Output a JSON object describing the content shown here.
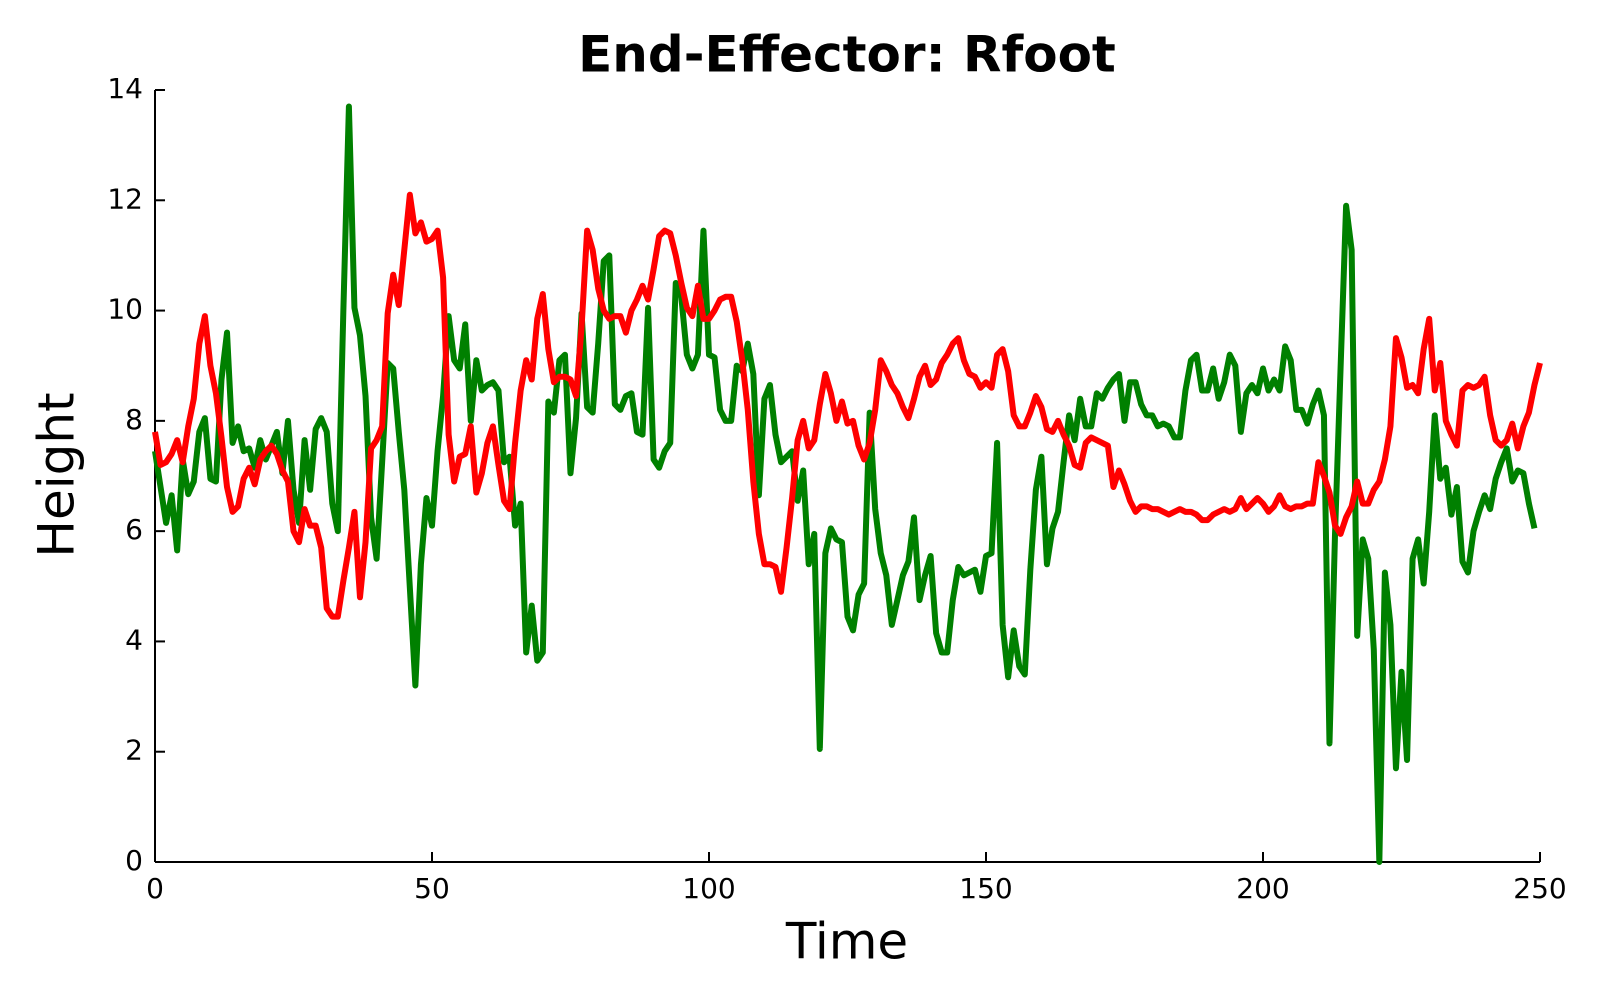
{
  "chart_data": {
    "type": "line",
    "title": "End-Effector: Rfoot",
    "xlabel": "Time",
    "ylabel": "Height",
    "xlim": [
      0,
      250
    ],
    "ylim": [
      0,
      14
    ],
    "xticks": [
      0,
      50,
      100,
      150,
      200,
      250
    ],
    "yticks": [
      0,
      2,
      4,
      6,
      8,
      10,
      12,
      14
    ],
    "grid": false,
    "series": [
      {
        "color": "#008000",
        "x": [
          0,
          2,
          3,
          4,
          5,
          6,
          7,
          8,
          9,
          10,
          11,
          12,
          13,
          14,
          15,
          16,
          17,
          18,
          19,
          20,
          22,
          23,
          24,
          25,
          26,
          27,
          28,
          29,
          30,
          31,
          32,
          33,
          34,
          35,
          36,
          37,
          38,
          39,
          40,
          41,
          42,
          43,
          44,
          45,
          47,
          48,
          49,
          50,
          51,
          52,
          53,
          54,
          55,
          56,
          57,
          58,
          59,
          60,
          61,
          62,
          63,
          64,
          65,
          66,
          67,
          68,
          69,
          70,
          71,
          72,
          73,
          74,
          75,
          76,
          77,
          78,
          79,
          80,
          81,
          82,
          83,
          84,
          85,
          86,
          87,
          88,
          89,
          90,
          91,
          92,
          93,
          94,
          95,
          96,
          97,
          98,
          99,
          100,
          101,
          102,
          103,
          104,
          105,
          106,
          107,
          108,
          109,
          110,
          111,
          112,
          113,
          114,
          115,
          116,
          117,
          118,
          119,
          120,
          121,
          122,
          123,
          124,
          125,
          126,
          127,
          128,
          129,
          130,
          131,
          132,
          133,
          134,
          135,
          136,
          137,
          138,
          139,
          140,
          141,
          142,
          143,
          144,
          145,
          146,
          147,
          148,
          149,
          150,
          151,
          152,
          153,
          154,
          155,
          156,
          157,
          158,
          159,
          160,
          161,
          162,
          163,
          164,
          165,
          166,
          167,
          168,
          169,
          170,
          171,
          172,
          173,
          174,
          175,
          176,
          177,
          178,
          179,
          180,
          181,
          182,
          183,
          184,
          185,
          186,
          187,
          188,
          189,
          190,
          191,
          192,
          193,
          194,
          195,
          196,
          197,
          198,
          199,
          200,
          201,
          202,
          203,
          204,
          205,
          206,
          207,
          208,
          209,
          210,
          211,
          212,
          213,
          214,
          215,
          216,
          217,
          218,
          219,
          220,
          221,
          222,
          223,
          224,
          225,
          226,
          227,
          228,
          229,
          230,
          231,
          232,
          233,
          234,
          235,
          236,
          237,
          238,
          239,
          240,
          241,
          242,
          243,
          244,
          245,
          246,
          247,
          248,
          249
        ],
        "values": [
          7.45,
          6.15,
          6.65,
          5.65,
          7.3,
          6.67,
          6.9,
          7.8,
          8.05,
          6.95,
          6.9,
          8.75,
          9.6,
          7.6,
          7.9,
          7.45,
          7.5,
          7.15,
          7.65,
          7.3,
          7.8,
          7.05,
          8.0,
          6.75,
          6.15,
          7.65,
          6.75,
          7.85,
          8.05,
          7.8,
          6.5,
          6.0,
          10.0,
          13.7,
          10.05,
          9.55,
          8.45,
          6.25,
          5.5,
          7.25,
          9.05,
          8.95,
          7.8,
          6.75,
          3.2,
          5.4,
          6.6,
          6.1,
          7.45,
          8.45,
          9.9,
          9.1,
          8.95,
          9.75,
          8.0,
          9.1,
          8.55,
          8.65,
          8.7,
          8.55,
          7.25,
          7.35,
          6.1,
          6.5,
          3.8,
          4.65,
          3.65,
          3.8,
          8.35,
          8.15,
          9.1,
          9.2,
          7.05,
          8.05,
          9.95,
          8.25,
          8.15,
          9.4,
          10.9,
          11.0,
          8.3,
          8.2,
          8.45,
          8.5,
          7.8,
          7.75,
          10.05,
          7.3,
          7.15,
          7.45,
          7.6,
          10.5,
          10.25,
          9.2,
          8.95,
          9.2,
          11.45,
          9.2,
          9.15,
          8.2,
          8.0,
          8.0,
          9.0,
          8.9,
          9.4,
          8.85,
          6.65,
          8.4,
          8.65,
          7.75,
          7.25,
          7.35,
          7.45,
          6.55,
          7.1,
          5.4,
          5.95,
          2.05,
          5.6,
          6.05,
          5.85,
          5.8,
          4.45,
          4.2,
          4.85,
          5.05,
          8.15,
          6.4,
          5.6,
          5.2,
          4.3,
          4.75,
          5.2,
          5.45,
          6.25,
          4.75,
          5.2,
          5.55,
          4.15,
          3.8,
          3.8,
          4.75,
          5.35,
          5.2,
          5.25,
          5.3,
          4.9,
          5.55,
          5.6,
          7.6,
          4.3,
          3.35,
          4.2,
          3.55,
          3.4,
          5.3,
          6.75,
          7.35,
          5.4,
          6.05,
          6.35,
          7.25,
          8.1,
          7.65,
          8.4,
          7.9,
          7.9,
          8.5,
          8.4,
          8.6,
          8.75,
          8.85,
          8.0,
          8.7,
          8.7,
          8.3,
          8.1,
          8.1,
          7.9,
          7.95,
          7.9,
          7.7,
          7.7,
          8.55,
          9.1,
          9.2,
          8.55,
          8.55,
          8.95,
          8.4,
          8.7,
          9.2,
          9.0,
          7.8,
          8.5,
          8.65,
          8.5,
          8.95,
          8.55,
          8.75,
          8.55,
          9.35,
          9.1,
          8.2,
          8.2,
          7.95,
          8.3,
          8.55,
          8.1,
          2.15,
          5.95,
          8.95,
          11.9,
          11.1,
          4.1,
          5.85,
          5.5,
          3.85,
          0,
          5.25,
          4.3,
          1.7,
          3.45,
          1.85,
          5.5,
          5.85,
          5.05,
          6.35,
          8.1,
          6.95,
          7.15,
          6.3,
          6.8,
          5.45,
          5.25,
          6.0,
          6.35,
          6.65,
          6.4,
          6.95,
          7.25,
          7.5,
          6.9,
          7.1,
          7.05,
          6.5,
          6.05
        ]
      },
      {
        "color": "#ff0000",
        "x": [
          0,
          1,
          2,
          3,
          4,
          5,
          6,
          7,
          8,
          9,
          10,
          11,
          12,
          13,
          14,
          15,
          16,
          17,
          18,
          19,
          20,
          21,
          22,
          23,
          24,
          25,
          26,
          27,
          28,
          29,
          30,
          31,
          32,
          33,
          34,
          35,
          36,
          37,
          38,
          39,
          40,
          41,
          42,
          43,
          44,
          45,
          46,
          47,
          48,
          49,
          50,
          51,
          52,
          53,
          54,
          55,
          56,
          57,
          58,
          59,
          60,
          61,
          62,
          63,
          64,
          65,
          66,
          67,
          68,
          69,
          70,
          71,
          72,
          73,
          74,
          75,
          76,
          77,
          78,
          79,
          80,
          81,
          82,
          83,
          84,
          85,
          86,
          87,
          88,
          89,
          90,
          91,
          92,
          93,
          94,
          95,
          96,
          97,
          98,
          99,
          100,
          101,
          102,
          103,
          104,
          105,
          106,
          107,
          108,
          109,
          110,
          111,
          112,
          113,
          114,
          115,
          116,
          117,
          118,
          119,
          120,
          121,
          122,
          123,
          124,
          125,
          126,
          127,
          128,
          129,
          130,
          131,
          132,
          133,
          134,
          135,
          136,
          137,
          138,
          139,
          140,
          141,
          142,
          143,
          144,
          145,
          146,
          147,
          148,
          149,
          150,
          151,
          152,
          153,
          154,
          155,
          156,
          157,
          158,
          159,
          160,
          161,
          162,
          163,
          164,
          165,
          166,
          167,
          168,
          169,
          170,
          171,
          172,
          173,
          174,
          175,
          176,
          177,
          178,
          179,
          180,
          181,
          182,
          183,
          184,
          185,
          186,
          187,
          188,
          189,
          190,
          191,
          192,
          193,
          194,
          195,
          196,
          197,
          198,
          199,
          200,
          201,
          202,
          203,
          204,
          205,
          206,
          207,
          208,
          209,
          210,
          211,
          212,
          213,
          214,
          215,
          216,
          217,
          218,
          219,
          220,
          221,
          222,
          223,
          224,
          225,
          226,
          227,
          228,
          229,
          230,
          231,
          232,
          233,
          234,
          235,
          236,
          237,
          238,
          239,
          240,
          241,
          242,
          243,
          244,
          245,
          246,
          247,
          248,
          249,
          250
        ],
        "values": [
          7.8,
          7.2,
          7.25,
          7.4,
          7.65,
          7.25,
          7.9,
          8.4,
          9.4,
          9.9,
          9.0,
          8.5,
          7.7,
          6.8,
          6.35,
          6.45,
          6.95,
          7.15,
          6.85,
          7.3,
          7.45,
          7.55,
          7.4,
          7.1,
          6.9,
          6.0,
          5.8,
          6.4,
          6.1,
          6.1,
          5.7,
          4.6,
          4.45,
          4.45,
          5.1,
          5.7,
          6.35,
          4.8,
          5.8,
          7.5,
          7.65,
          7.9,
          9.95,
          10.65,
          10.1,
          11.1,
          12.1,
          11.4,
          11.6,
          11.25,
          11.3,
          11.45,
          10.6,
          7.75,
          6.9,
          7.35,
          7.4,
          7.9,
          6.7,
          7.05,
          7.6,
          7.9,
          7.2,
          6.55,
          6.4,
          7.6,
          8.55,
          9.1,
          8.75,
          9.85,
          10.3,
          9.3,
          8.7,
          8.8,
          8.8,
          8.75,
          8.45,
          9.7,
          11.45,
          11.1,
          10.4,
          10.0,
          9.85,
          9.9,
          9.9,
          9.6,
          10.0,
          10.2,
          10.45,
          10.2,
          10.75,
          11.35,
          11.45,
          11.4,
          11.0,
          10.5,
          10.05,
          9.9,
          10.45,
          9.85,
          9.85,
          10.0,
          10.2,
          10.25,
          10.25,
          9.8,
          9.1,
          8.2,
          6.9,
          5.95,
          5.4,
          5.4,
          5.35,
          4.9,
          5.7,
          6.6,
          7.65,
          8.0,
          7.5,
          7.65,
          8.3,
          8.85,
          8.5,
          8.0,
          8.35,
          7.95,
          8.0,
          7.55,
          7.3,
          7.6,
          8.2,
          9.1,
          8.9,
          8.65,
          8.5,
          8.25,
          8.05,
          8.4,
          8.8,
          9.0,
          8.65,
          8.75,
          9.05,
          9.2,
          9.4,
          9.5,
          9.1,
          8.85,
          8.8,
          8.6,
          8.7,
          8.6,
          9.2,
          9.3,
          8.9,
          8.1,
          7.9,
          7.9,
          8.15,
          8.45,
          8.25,
          7.85,
          7.8,
          8.0,
          7.75,
          7.55,
          7.2,
          7.15,
          7.6,
          7.7,
          7.65,
          7.6,
          7.55,
          6.8,
          7.1,
          6.85,
          6.55,
          6.35,
          6.45,
          6.45,
          6.4,
          6.4,
          6.35,
          6.3,
          6.35,
          6.4,
          6.35,
          6.35,
          6.3,
          6.2,
          6.2,
          6.3,
          6.35,
          6.4,
          6.35,
          6.4,
          6.6,
          6.4,
          6.5,
          6.6,
          6.5,
          6.35,
          6.45,
          6.65,
          6.45,
          6.4,
          6.45,
          6.45,
          6.5,
          6.5,
          7.25,
          7.0,
          6.7,
          6.1,
          5.95,
          6.25,
          6.45,
          6.9,
          6.5,
          6.5,
          6.75,
          6.9,
          7.3,
          7.9,
          9.5,
          9.15,
          8.6,
          8.65,
          8.5,
          9.3,
          9.85,
          8.55,
          9.05,
          8.0,
          7.75,
          7.55,
          8.55,
          8.65,
          8.6,
          8.65,
          8.8,
          8.1,
          7.65,
          7.55,
          7.65,
          7.95,
          7.5,
          7.9,
          8.15,
          8.65,
          9.05
        ]
      }
    ]
  }
}
